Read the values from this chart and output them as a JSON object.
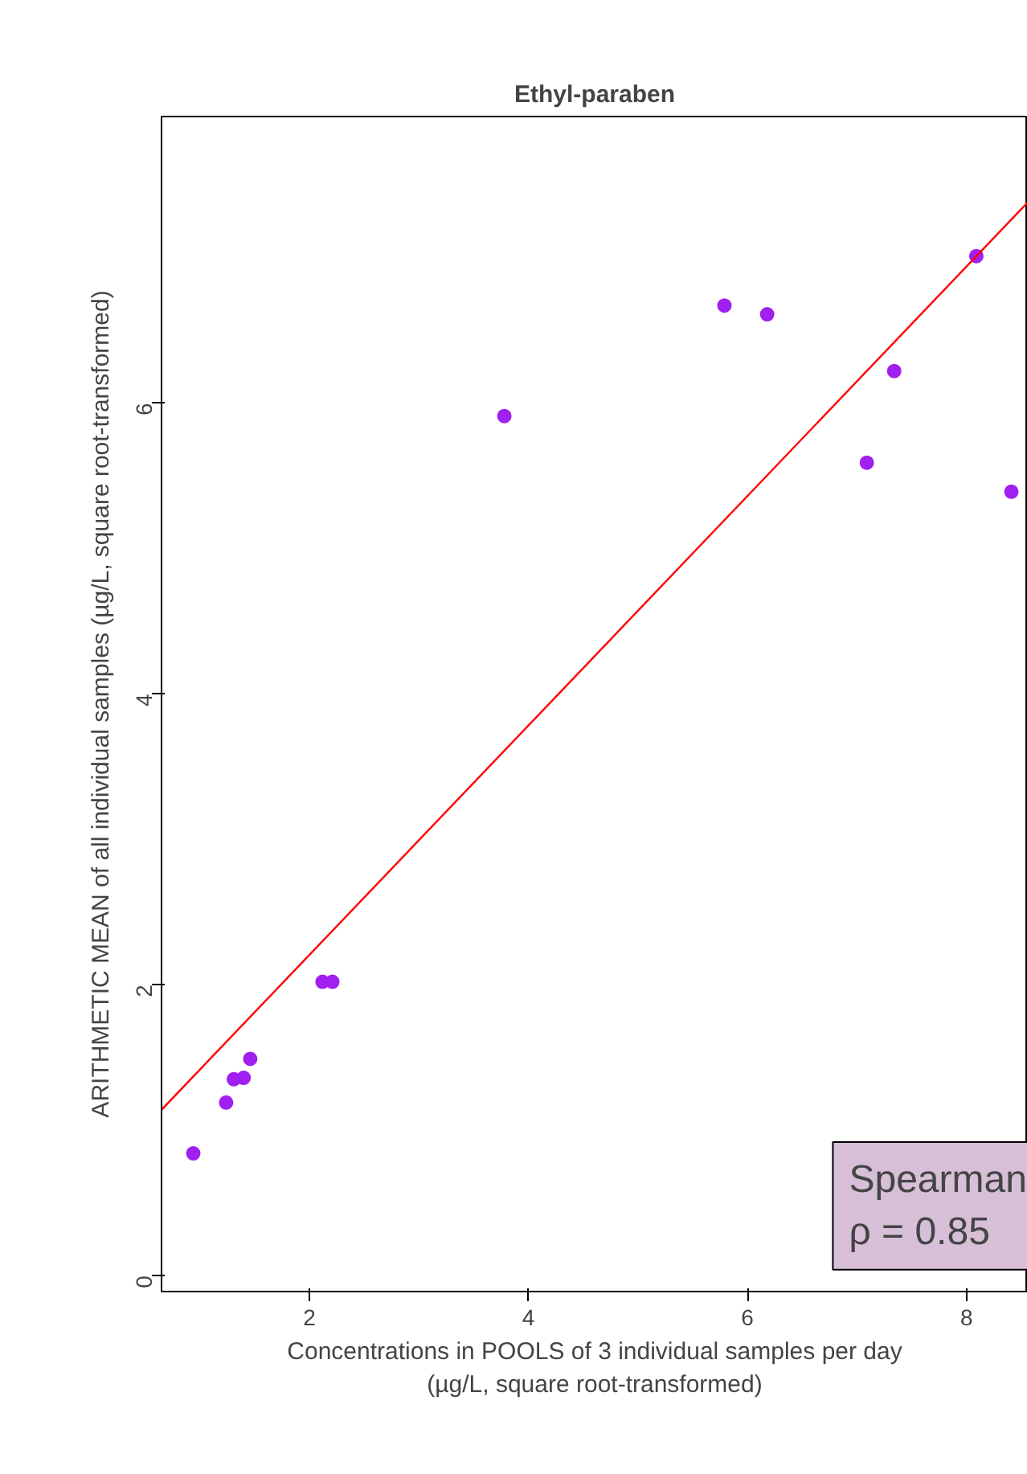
{
  "chart_data": {
    "type": "scatter",
    "title": "Ethyl-paraben",
    "xlabel": "Concentrations in POOLS of 3 individual samples per day\n(µg/L, square root-transformed)",
    "ylabel": "ARITHMETIC MEAN of all individual samples (µg/L, square root-transformed)",
    "annotations": [
      "Spearman",
      "ρ = 0.85"
    ],
    "xlim": [
      0.65,
      8.56
    ],
    "ylim": [
      -0.11,
      7.97
    ],
    "xticks": [
      2,
      4,
      6,
      8
    ],
    "yticks": [
      0,
      2,
      4,
      6
    ],
    "grid": false,
    "series": [
      {
        "marker": "circle",
        "color": "#a020f0",
        "x": [
          0.94,
          1.24,
          1.31,
          1.4,
          1.46,
          2.12,
          2.21,
          3.78,
          5.79,
          6.18,
          7.09,
          7.34,
          8.09,
          8.41
        ],
        "values": [
          0.84,
          1.19,
          1.35,
          1.36,
          1.49,
          2.02,
          2.02,
          5.91,
          6.67,
          6.61,
          5.59,
          6.22,
          7.01,
          5.39
        ]
      },
      {
        "type": "line",
        "color": "#ff0000",
        "x": [
          0.65,
          8.56
        ],
        "values": [
          1.14,
          7.38
        ]
      }
    ]
  }
}
